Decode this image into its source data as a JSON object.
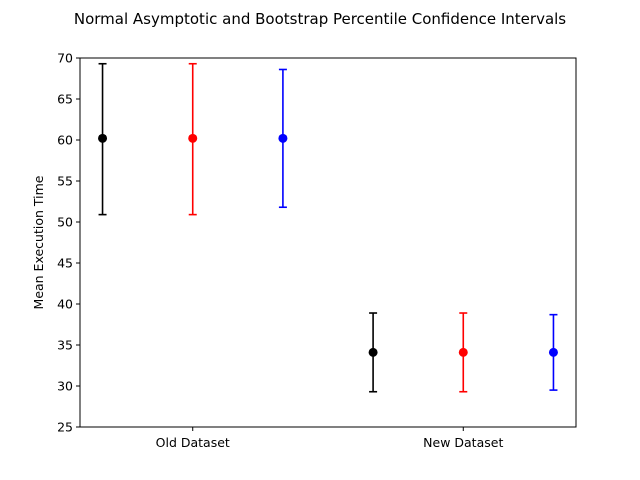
{
  "chart_data": {
    "type": "errorbar",
    "title": "Normal Asymptotic and Bootstrap Percentile Confidence Intervals",
    "xlabel": "",
    "ylabel": "Mean Execution Time",
    "ylim": [
      25,
      70
    ],
    "yticks": [
      25,
      30,
      35,
      40,
      45,
      50,
      55,
      60,
      65,
      70
    ],
    "grid": false,
    "categories": [
      "Old Dataset",
      "New Dataset"
    ],
    "series": [
      {
        "color": "#000000",
        "means": [
          60.2,
          34.1
        ],
        "lower": [
          50.9,
          29.3
        ],
        "upper": [
          69.3,
          38.9
        ]
      },
      {
        "color": "#ff0000",
        "means": [
          60.2,
          34.1
        ],
        "lower": [
          50.9,
          29.3
        ],
        "upper": [
          69.3,
          38.9
        ]
      },
      {
        "color": "#0000ff",
        "means": [
          60.2,
          34.1
        ],
        "lower": [
          51.8,
          29.5
        ],
        "upper": [
          68.6,
          38.7
        ]
      }
    ]
  }
}
